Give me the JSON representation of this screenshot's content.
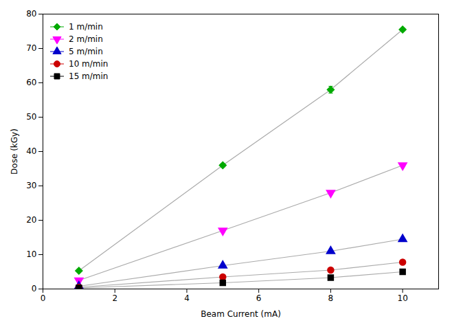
{
  "chart_data": {
    "type": "line",
    "xlabel": "Beam Current (mA)",
    "ylabel": "Dose (kGy)",
    "xlim": [
      0,
      11
    ],
    "ylim": [
      0,
      80
    ],
    "xticks": [
      0,
      2,
      4,
      6,
      8,
      10
    ],
    "yticks": [
      0,
      10,
      20,
      30,
      40,
      50,
      60,
      70,
      80
    ],
    "grid": false,
    "legend": "upper left",
    "x": [
      1,
      5,
      8,
      10
    ],
    "series": [
      {
        "name": "1 m/min",
        "color": "#00AA00",
        "marker": "diamond",
        "values": [
          5.3,
          36.0,
          58.0,
          75.5
        ],
        "yerr": [
          0.3,
          0.5,
          1.0,
          0.5
        ]
      },
      {
        "name": "2 m/min",
        "color": "#FF00FF",
        "marker": "triangle_down",
        "values": [
          2.5,
          17.0,
          28.0,
          36.0
        ],
        "yerr": [
          0.2,
          0.5,
          0.5,
          0.5
        ]
      },
      {
        "name": "5 m/min",
        "color": "#0000CC",
        "marker": "triangle_up",
        "values": [
          0.8,
          6.8,
          11.0,
          14.5
        ],
        "yerr": [
          0.1,
          0.2,
          0.3,
          0.3
        ]
      },
      {
        "name": "10 m/min",
        "color": "#CC0000",
        "marker": "circle",
        "values": [
          0.5,
          3.5,
          5.5,
          7.8
        ],
        "yerr": [
          0.1,
          0.2,
          0.2,
          0.2
        ]
      },
      {
        "name": "15 m/min",
        "color": "#000000",
        "marker": "square",
        "values": [
          0.3,
          1.8,
          3.3,
          5.0
        ],
        "yerr": [
          0.05,
          0.1,
          0.15,
          0.15
        ]
      }
    ]
  }
}
